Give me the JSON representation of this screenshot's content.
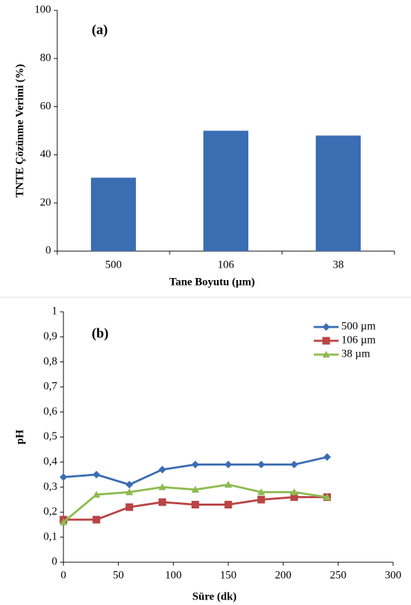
{
  "chart_data": [
    {
      "type": "bar",
      "annotation": "(a)",
      "xlabel": "Tane Boyutu (µm)",
      "ylabel": "TNTE Çözünme Verimi (%)",
      "categories": [
        "500",
        "106",
        "38"
      ],
      "values": [
        30.5,
        50,
        48
      ],
      "color": "#3b6db3",
      "ylim": [
        0,
        100
      ],
      "yticks": [
        0,
        20,
        40,
        60,
        80,
        100
      ]
    },
    {
      "type": "line",
      "annotation": "(b)",
      "xlabel": "Süre (dk)",
      "ylabel": "pH",
      "x": [
        0,
        30,
        60,
        90,
        120,
        150,
        180,
        210,
        240
      ],
      "series": [
        {
          "name": "500 µm",
          "color": "#3b6db3",
          "marker": "diamond",
          "values": [
            0.34,
            0.35,
            0.31,
            0.37,
            0.39,
            0.39,
            0.39,
            0.39,
            0.42
          ]
        },
        {
          "name": "106 µm",
          "color": "#b94545",
          "marker": "square",
          "values": [
            0.17,
            0.17,
            0.22,
            0.24,
            0.23,
            0.23,
            0.25,
            0.26,
            0.26
          ]
        },
        {
          "name": "38 µm",
          "color": "#8dbb4f",
          "marker": "triangle",
          "values": [
            0.16,
            0.27,
            0.28,
            0.3,
            0.29,
            0.31,
            0.28,
            0.28,
            0.26
          ]
        }
      ],
      "xlim": [
        0,
        300
      ],
      "xticks": [
        0,
        50,
        100,
        150,
        200,
        250,
        300
      ],
      "ylim": [
        0,
        1
      ],
      "yticks": [
        0,
        {
          "value": 0.1,
          "label": "0,1"
        },
        {
          "value": 0.2,
          "label": "0,2"
        },
        {
          "value": 0.3,
          "label": "0,3"
        },
        {
          "value": 0.4,
          "label": "0,4"
        },
        {
          "value": 0.5,
          "label": "0,5"
        },
        {
          "value": 0.6,
          "label": "0,6"
        },
        {
          "value": 0.7,
          "label": "0,7"
        },
        {
          "value": 0.8,
          "label": "0,8"
        },
        {
          "value": 0.9,
          "label": "0,9"
        },
        1
      ],
      "legend": "top-right"
    }
  ]
}
